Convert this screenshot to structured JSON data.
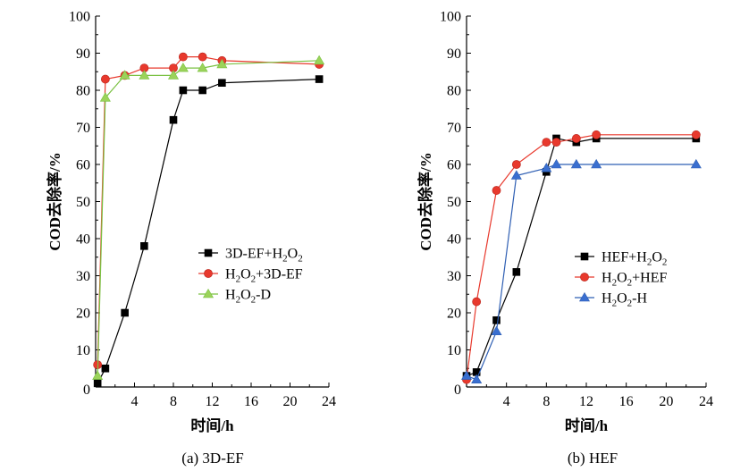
{
  "chart_data": [
    {
      "type": "line",
      "caption": "(a) 3D-EF",
      "xlabel": "时间/h",
      "ylabel": "COD去除率/%",
      "xlim": [
        0,
        24
      ],
      "ylim": [
        0,
        100
      ],
      "xticks": [
        4,
        8,
        12,
        16,
        20,
        24
      ],
      "yticks": [
        10,
        20,
        30,
        40,
        50,
        60,
        70,
        80,
        90,
        100
      ],
      "zero_label": "0",
      "legend": "lower-right",
      "grid": false,
      "series": [
        {
          "name": "3D-EF+H2O2",
          "label": {
            "parts": [
              [
                "3D-EF+H",
                ""
              ],
              [
                "2",
                "sub"
              ],
              [
                "O",
                ""
              ],
              [
                "2",
                "sub"
              ]
            ]
          },
          "marker": "square",
          "color": "#000000",
          "fill": "#000000",
          "x": [
            0.2,
            1,
            3,
            5,
            8,
            9,
            11,
            13,
            23
          ],
          "y": [
            1,
            5,
            20,
            38,
            72,
            80,
            80,
            82,
            83
          ]
        },
        {
          "name": "H2O2+3D-EF",
          "label": {
            "parts": [
              [
                "H",
                ""
              ],
              [
                "2",
                "sub"
              ],
              [
                "O",
                ""
              ],
              [
                "2",
                "sub"
              ],
              [
                "+3D-EF",
                ""
              ]
            ]
          },
          "marker": "circle",
          "color": "#e8392d",
          "fill": "#e8392d",
          "x": [
            0.2,
            1,
            3,
            5,
            8,
            9,
            11,
            13,
            23
          ],
          "y": [
            6,
            83,
            84,
            86,
            86,
            89,
            89,
            88,
            87
          ]
        },
        {
          "name": "H2O2-D",
          "label": {
            "parts": [
              [
                "H",
                ""
              ],
              [
                "2",
                "sub"
              ],
              [
                "O",
                ""
              ],
              [
                "2",
                "sub"
              ],
              [
                "-D",
                ""
              ]
            ]
          },
          "marker": "triangle",
          "color": "#7ac142",
          "fill": "#9bd35a",
          "x": [
            0.2,
            1,
            3,
            5,
            8,
            9,
            11,
            13,
            23
          ],
          "y": [
            3,
            78,
            84,
            84,
            84,
            86,
            86,
            87,
            88
          ]
        }
      ]
    },
    {
      "type": "line",
      "caption": "(b) HEF",
      "xlabel": "时间/h",
      "ylabel": "COD去除率/%",
      "xlim": [
        0,
        24
      ],
      "ylim": [
        0,
        100
      ],
      "xticks": [
        4,
        8,
        12,
        16,
        20,
        24
      ],
      "yticks": [
        10,
        20,
        30,
        40,
        50,
        60,
        70,
        80,
        90,
        100
      ],
      "zero_label": "0",
      "legend": "lower-right",
      "grid": false,
      "series": [
        {
          "name": "HEF+H2O2",
          "label": {
            "parts": [
              [
                "HEF+H",
                ""
              ],
              [
                "2",
                "sub"
              ],
              [
                "O",
                ""
              ],
              [
                "2",
                "sub"
              ]
            ]
          },
          "marker": "square",
          "color": "#000000",
          "fill": "#000000",
          "x": [
            0,
            1,
            3,
            5,
            8,
            9,
            11,
            13,
            23
          ],
          "y": [
            3,
            4,
            18,
            31,
            58,
            67,
            66,
            67,
            67
          ]
        },
        {
          "name": "H2O2+HEF",
          "label": {
            "parts": [
              [
                "H",
                ""
              ],
              [
                "2",
                "sub"
              ],
              [
                "O",
                ""
              ],
              [
                "2",
                "sub"
              ],
              [
                "+HEF",
                ""
              ]
            ]
          },
          "marker": "circle",
          "color": "#e8392d",
          "fill": "#e8392d",
          "x": [
            0,
            1,
            3,
            5,
            8,
            9,
            11,
            13,
            23
          ],
          "y": [
            2,
            23,
            53,
            60,
            66,
            66,
            67,
            68,
            68
          ]
        },
        {
          "name": "H2O2-H",
          "label": {
            "parts": [
              [
                "H",
                ""
              ],
              [
                "2",
                "sub"
              ],
              [
                "O",
                ""
              ],
              [
                "2",
                "sub"
              ],
              [
                "-H",
                ""
              ]
            ]
          },
          "marker": "triangle",
          "color": "#2f5fb3",
          "fill": "#3a6fd0",
          "x": [
            0,
            1,
            3,
            5,
            8,
            9,
            11,
            13,
            23
          ],
          "y": [
            3,
            2,
            15,
            57,
            59,
            60,
            60,
            60,
            60
          ]
        }
      ]
    }
  ]
}
